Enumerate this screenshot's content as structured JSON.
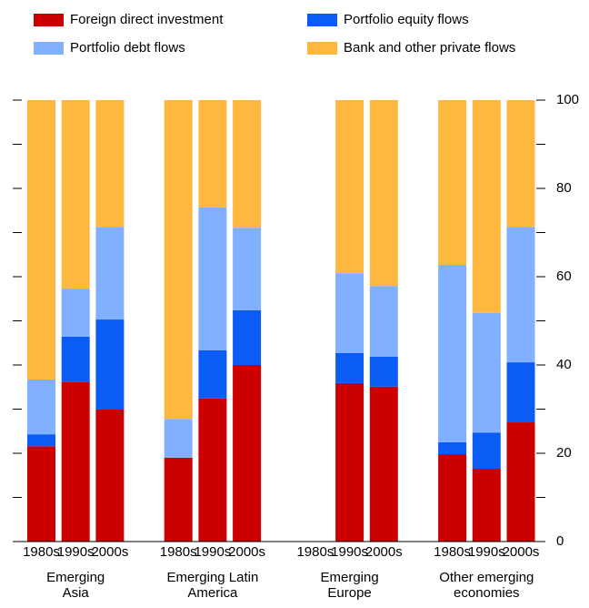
{
  "chart_data": {
    "type": "stacked-bar",
    "groups": [
      "Emerging Asia",
      "Emerging Latin America",
      "Emerging Europe",
      "Other emerging economies"
    ],
    "categories": [
      "1980s",
      "1990s",
      "2000s",
      "1980s",
      "1990s",
      "2000s",
      "1980s",
      "1990s",
      "2000s",
      "1980s",
      "1990s",
      "2000s"
    ],
    "series": [
      {
        "name": "Foreign direct investment",
        "color": "#cc0000",
        "values": [
          21.6,
          36.1,
          29.9,
          19.0,
          32.4,
          40.0,
          null,
          35.9,
          35.1,
          19.8,
          16.5,
          27.0
        ]
      },
      {
        "name": "Portfolio equity flows",
        "color": "#0a5cf5",
        "values": [
          2.7,
          10.3,
          20.4,
          0,
          10.9,
          12.4,
          null,
          6.8,
          6.8,
          2.7,
          8.2,
          13.6
        ]
      },
      {
        "name": "Portfolio debt flows",
        "color": "#80b0ff",
        "values": [
          12.4,
          10.9,
          21.0,
          8.8,
          32.4,
          18.7,
          null,
          18.1,
          16.0,
          40.2,
          27.1,
          30.7
        ]
      },
      {
        "name": "Bank and other private flows",
        "color": "#ffb83f",
        "values": [
          63.3,
          42.7,
          28.7,
          72.2,
          24.3,
          28.9,
          null,
          39.2,
          42.1,
          37.3,
          48.2,
          28.7
        ]
      }
    ],
    "ylim": [
      0,
      100
    ],
    "yticks": [
      0,
      20,
      40,
      60,
      80,
      100
    ],
    "minor_yticks": [
      10,
      30,
      50,
      70,
      90
    ]
  }
}
